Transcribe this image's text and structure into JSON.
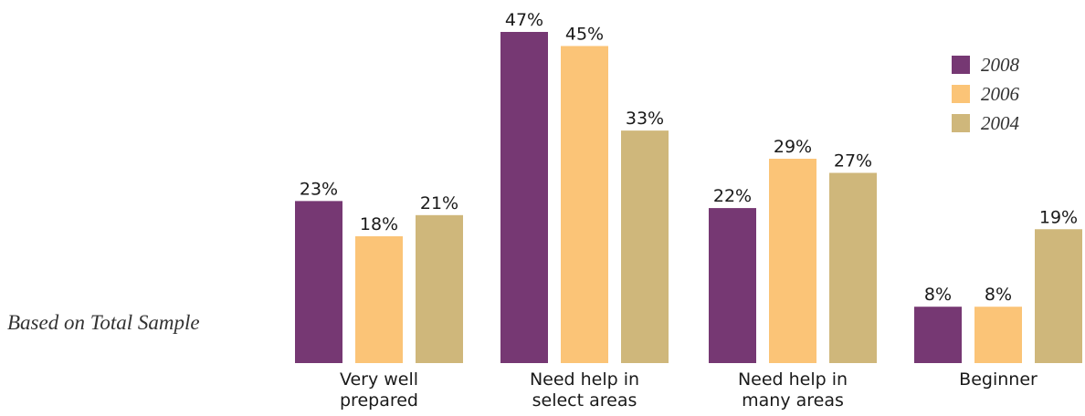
{
  "note": "Based on Total Sample",
  "chart_data": {
    "type": "bar",
    "categories": [
      [
        "Very well",
        "prepared"
      ],
      [
        "Need help in",
        "select areas"
      ],
      [
        "Need help in",
        "many areas"
      ],
      [
        "Beginner"
      ]
    ],
    "series": [
      {
        "name": "2008",
        "color": "#763873",
        "values": [
          23,
          47,
          22,
          8
        ],
        "labels": [
          "23%",
          "47%",
          "22%",
          "8%"
        ]
      },
      {
        "name": "2006",
        "color": "#fbc477",
        "values": [
          18,
          45,
          29,
          8
        ],
        "labels": [
          "18%",
          "45%",
          "29%",
          "8%"
        ]
      },
      {
        "name": "2004",
        "color": "#cfb77b",
        "values": [
          21,
          33,
          27,
          19
        ],
        "labels": [
          "21%",
          "33%",
          "27%",
          "19%"
        ]
      }
    ],
    "ylim": [
      0,
      47
    ],
    "grid": false,
    "legend": "top-right",
    "value_labels": "above-bars"
  }
}
